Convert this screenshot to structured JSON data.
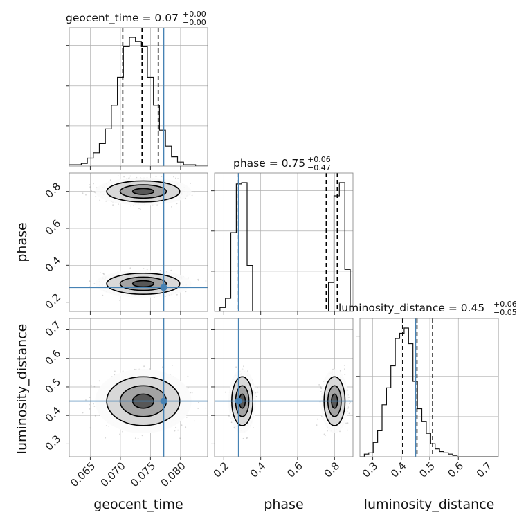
{
  "chart_data": {
    "type": "corner",
    "parameters": [
      {
        "name": "geocent_time",
        "range": [
          0.0615,
          0.0845
        ],
        "ticks": [
          0.065,
          0.07,
          0.075,
          0.08
        ],
        "tick_labels": [
          "0.065",
          "0.070",
          "0.075",
          "0.080"
        ],
        "truth": 0.0772,
        "title": {
          "text": "geocent_time = 0.07",
          "plus": "+0.00",
          "minus": "−0.00"
        },
        "quantiles": [
          0.0704,
          0.0736,
          0.0763
        ],
        "histogram": {
          "bin_start": 0.0615,
          "bin_width": 0.001,
          "counts": [
            1,
            1,
            2,
            6,
            10,
            17,
            28,
            46,
            67,
            90,
            97,
            94,
            90,
            67,
            46,
            27,
            15,
            7,
            3,
            1,
            1,
            0,
            0
          ]
        }
      },
      {
        "name": "phase",
        "range": [
          0.15,
          0.9
        ],
        "ticks": [
          0.2,
          0.4,
          0.6,
          0.8
        ],
        "tick_labels": [
          "0.2",
          "0.4",
          "0.6",
          "0.8"
        ],
        "truth": 0.28,
        "title": {
          "text": "phase = 0.75",
          "plus": "+0.06",
          "minus": "−0.47"
        },
        "quantiles": [
          0.28,
          0.755,
          0.815
        ],
        "histogram": {
          "bin_start": 0.15,
          "bin_width": 0.0294,
          "counts": [
            0,
            3,
            10,
            60,
            97,
            98,
            35,
            0,
            0,
            0,
            0,
            0,
            0,
            0,
            0,
            0,
            0,
            0,
            0,
            0,
            0,
            22,
            88,
            98,
            32,
            0
          ]
        }
      },
      {
        "name": "luminosity_distance",
        "range": [
          0.255,
          0.74
        ],
        "ticks": [
          0.3,
          0.4,
          0.5,
          0.6,
          0.7
        ],
        "tick_labels": [
          "0.3",
          "0.4",
          "0.5",
          "0.6",
          "0.7"
        ],
        "truth": 0.45,
        "title": {
          "text": "luminosity_distance = 0.45",
          "plus": "+0.06",
          "minus": "−0.05"
        },
        "quantiles": [
          0.405,
          0.455,
          0.51
        ],
        "histogram": {
          "bin_start": 0.255,
          "bin_width": 0.0155,
          "counts": [
            0,
            2,
            3,
            11,
            20,
            40,
            53,
            70,
            91,
            95,
            99,
            87,
            58,
            37,
            27,
            18,
            10,
            6,
            4,
            3,
            2,
            1,
            0,
            0,
            0,
            0,
            0,
            0,
            0,
            0,
            0,
            0
          ]
        }
      }
    ],
    "posterior_modes": [
      {
        "weight": 0.5,
        "mean": [
          0.0738,
          0.8,
          0.45
        ],
        "sd": [
          0.0032,
          0.03,
          0.045
        ]
      },
      {
        "weight": 0.5,
        "mean": [
          0.0738,
          0.3,
          0.45
        ],
        "sd": [
          0.0032,
          0.03,
          0.045
        ]
      }
    ],
    "truth_color": "#4682b4",
    "grid": true,
    "legend": "none"
  }
}
